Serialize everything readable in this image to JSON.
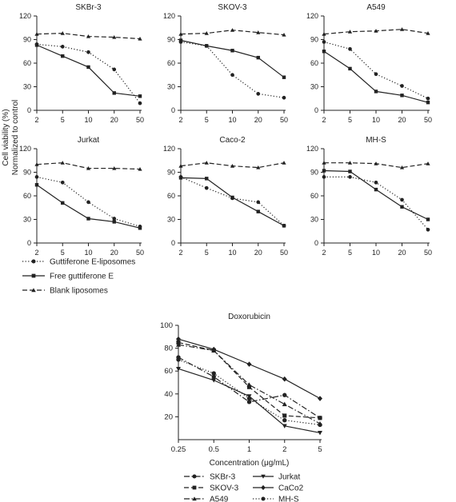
{
  "figure": {
    "shared_ylabel_line1": "Cell viability (%)",
    "shared_ylabel_line2": "Normalized to control",
    "legend_top": [
      {
        "label": "Guttiferone E-liposomes",
        "style": "dotted",
        "marker": "circle"
      },
      {
        "label": "Free guttiferone E",
        "style": "solid",
        "marker": "square"
      },
      {
        "label": "Blank liposomes",
        "style": "dashed",
        "marker": "triangle-up"
      }
    ],
    "legend_bottom": [
      {
        "label": "SKBr-3",
        "style": "dashdot",
        "marker": "circle"
      },
      {
        "label": "SKOV-3",
        "style": "dashed",
        "marker": "square"
      },
      {
        "label": "A549",
        "style": "dashdot",
        "marker": "triangle-up"
      },
      {
        "label": "Jurkat",
        "style": "solid",
        "marker": "triangle-down"
      },
      {
        "label": "CaCo2",
        "style": "solid",
        "marker": "diamond"
      },
      {
        "label": "MH-S",
        "style": "dotted",
        "marker": "circle"
      }
    ]
  },
  "chart_data": [
    {
      "type": "line",
      "title": "SKBr-3",
      "categories": [
        "2",
        "5",
        "10",
        "20",
        "50"
      ],
      "ylim": [
        0,
        120
      ],
      "yticks": [
        0,
        30,
        60,
        90,
        120
      ],
      "series": [
        {
          "name": "Guttiferone E-liposomes",
          "values": [
            84,
            81,
            74,
            52,
            9
          ]
        },
        {
          "name": "Free guttiferone E",
          "values": [
            83,
            69,
            55,
            22,
            18
          ]
        },
        {
          "name": "Blank liposomes",
          "values": [
            97,
            98,
            94,
            93,
            91
          ]
        }
      ]
    },
    {
      "type": "line",
      "title": "SKOV-3",
      "categories": [
        "2",
        "5",
        "10",
        "20",
        "50"
      ],
      "ylim": [
        0,
        120
      ],
      "yticks": [
        0,
        30,
        60,
        90,
        120
      ],
      "series": [
        {
          "name": "Guttiferone E-liposomes",
          "values": [
            87,
            82,
            45,
            21,
            16
          ]
        },
        {
          "name": "Free guttiferone E",
          "values": [
            89,
            82,
            76,
            67,
            42
          ]
        },
        {
          "name": "Blank liposomes",
          "values": [
            97,
            98,
            102,
            99,
            96
          ]
        }
      ]
    },
    {
      "type": "line",
      "title": "A549",
      "categories": [
        "2",
        "5",
        "10",
        "20",
        "50"
      ],
      "ylim": [
        0,
        120
      ],
      "yticks": [
        0,
        30,
        60,
        90,
        120
      ],
      "series": [
        {
          "name": "Guttiferone E-liposomes",
          "values": [
            87,
            78,
            46,
            31,
            15
          ]
        },
        {
          "name": "Free guttiferone E",
          "values": [
            75,
            53,
            24,
            19,
            10
          ]
        },
        {
          "name": "Blank liposomes",
          "values": [
            97,
            100,
            101,
            103,
            98
          ]
        }
      ]
    },
    {
      "type": "line",
      "title": "Jurkat",
      "categories": [
        "2",
        "5",
        "10",
        "20",
        "50"
      ],
      "ylim": [
        0,
        120
      ],
      "yticks": [
        0,
        30,
        60,
        90,
        120
      ],
      "series": [
        {
          "name": "Guttiferone E-liposomes",
          "values": [
            84,
            77,
            52,
            31,
            21
          ]
        },
        {
          "name": "Free guttiferone E",
          "values": [
            74,
            51,
            31,
            27,
            19
          ]
        },
        {
          "name": "Blank liposomes",
          "values": [
            100,
            102,
            95,
            95,
            94
          ]
        }
      ]
    },
    {
      "type": "line",
      "title": "Caco-2",
      "categories": [
        "2",
        "5",
        "10",
        "20",
        "50"
      ],
      "ylim": [
        0,
        120
      ],
      "yticks": [
        0,
        30,
        60,
        90,
        120
      ],
      "series": [
        {
          "name": "Guttiferone E-liposomes",
          "values": [
            84,
            70,
            57,
            52,
            22
          ]
        },
        {
          "name": "Free guttiferone E",
          "values": [
            83,
            82,
            58,
            40,
            22
          ]
        },
        {
          "name": "Blank liposomes",
          "values": [
            98,
            102,
            98,
            96,
            102
          ]
        }
      ]
    },
    {
      "type": "line",
      "title": "MH-S",
      "categories": [
        "2",
        "5",
        "10",
        "20",
        "50"
      ],
      "ylim": [
        0,
        120
      ],
      "yticks": [
        0,
        30,
        60,
        90,
        120
      ],
      "series": [
        {
          "name": "Guttiferone E-liposomes",
          "values": [
            84,
            84,
            77,
            55,
            17
          ]
        },
        {
          "name": "Free guttiferone E",
          "values": [
            92,
            91,
            68,
            46,
            30
          ]
        },
        {
          "name": "Blank liposomes",
          "values": [
            102,
            102,
            101,
            96,
            101
          ]
        }
      ]
    },
    {
      "type": "line",
      "title": "Doxorubicin",
      "xlabel": "Concentration (μg/mL)",
      "categories": [
        "0.25",
        "0.5",
        "1",
        "2",
        "5"
      ],
      "ylim": [
        0,
        100
      ],
      "yticks": [
        20,
        40,
        60,
        80,
        100
      ],
      "series": [
        {
          "name": "SKBr-3",
          "values": [
            72,
            55,
            33,
            39,
            19
          ]
        },
        {
          "name": "SKOV-3",
          "values": [
            85,
            78,
            46,
            21,
            19
          ]
        },
        {
          "name": "A549",
          "values": [
            83,
            78,
            48,
            31,
            14
          ]
        },
        {
          "name": "Jurkat",
          "values": [
            62,
            52,
            38,
            12,
            6
          ]
        },
        {
          "name": "CaCo2",
          "values": [
            88,
            79,
            66,
            53,
            36
          ]
        },
        {
          "name": "MH-S",
          "values": [
            70,
            58,
            36,
            17,
            13
          ]
        }
      ]
    }
  ]
}
